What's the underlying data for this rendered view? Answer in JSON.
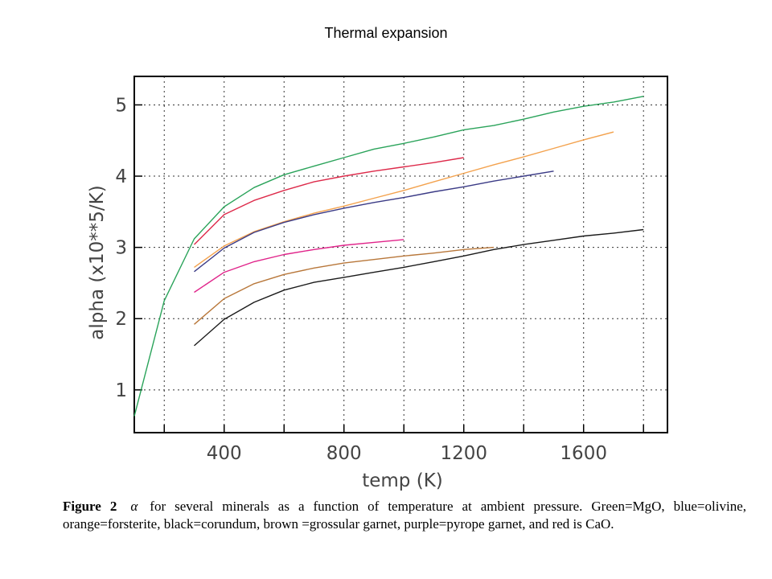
{
  "slide": {
    "title": "Thermal expansion"
  },
  "caption": {
    "figure_label": "Figure 2",
    "symbol": "α",
    "text": "for several minerals as a function of temperature at ambient pressure.  Green=MgO, blue=olivine, orange=forsterite, black=corundum, brown =grossular garnet, purple=pyrope garnet, and red is CaO."
  },
  "chart_data": {
    "type": "line",
    "xlabel": "temp (K)",
    "ylabel": "alpha (x10**5/K)",
    "xlim": [
      100,
      1880
    ],
    "ylim": [
      0.4,
      5.4
    ],
    "xticks": [
      400,
      800,
      1200,
      1600
    ],
    "yticks": [
      1,
      2,
      3,
      4,
      5
    ],
    "x_grid": [
      200,
      400,
      600,
      800,
      1000,
      1200,
      1400,
      1600,
      1800
    ],
    "y_grid": [
      1,
      2,
      3,
      4,
      5
    ],
    "grid": true,
    "grid_style": "dotted",
    "series": [
      {
        "color": "#2aa35a",
        "x": [
          100,
          200,
          300,
          400,
          500,
          600,
          700,
          800,
          900,
          1000,
          1100,
          1200,
          1300,
          1400,
          1500,
          1600,
          1700,
          1800
        ],
        "y": [
          0.63,
          2.25,
          3.12,
          3.57,
          3.84,
          4.02,
          4.14,
          4.26,
          4.38,
          4.46,
          4.55,
          4.65,
          4.71,
          4.8,
          4.9,
          4.98,
          5.04,
          5.12
        ]
      },
      {
        "color": "#dd2a4a",
        "x": [
          300,
          400,
          500,
          600,
          700,
          800,
          900,
          1000,
          1100,
          1200
        ],
        "y": [
          3.04,
          3.46,
          3.66,
          3.8,
          3.92,
          4.0,
          4.07,
          4.13,
          4.19,
          4.26
        ]
      },
      {
        "color": "#f3a24e",
        "x": [
          300,
          400,
          500,
          600,
          700,
          800,
          900,
          1000,
          1100,
          1200,
          1300,
          1400,
          1500,
          1600,
          1700
        ],
        "y": [
          2.72,
          3.02,
          3.22,
          3.36,
          3.48,
          3.58,
          3.69,
          3.8,
          3.92,
          4.04,
          4.16,
          4.27,
          4.39,
          4.51,
          4.62
        ]
      },
      {
        "color": "#3b3b86",
        "x": [
          300,
          400,
          500,
          600,
          700,
          800,
          900,
          1000,
          1100,
          1200,
          1300,
          1400,
          1500
        ],
        "y": [
          2.66,
          2.99,
          3.21,
          3.35,
          3.46,
          3.55,
          3.63,
          3.7,
          3.78,
          3.85,
          3.93,
          4.0,
          4.07
        ]
      },
      {
        "color": "#e0248a",
        "x": [
          300,
          400,
          500,
          600,
          700,
          800,
          900,
          1000
        ],
        "y": [
          2.37,
          2.65,
          2.8,
          2.9,
          2.97,
          3.03,
          3.07,
          3.11
        ]
      },
      {
        "color": "#b8773a",
        "x": [
          300,
          400,
          500,
          600,
          700,
          800,
          900,
          1000,
          1100,
          1200,
          1300
        ],
        "y": [
          1.92,
          2.28,
          2.49,
          2.62,
          2.71,
          2.78,
          2.83,
          2.88,
          2.92,
          2.97,
          3.0
        ]
      },
      {
        "color": "#1a1a1a",
        "x": [
          300,
          400,
          500,
          600,
          700,
          800,
          900,
          1000,
          1100,
          1200,
          1300,
          1400,
          1500,
          1600,
          1700,
          1800
        ],
        "y": [
          1.62,
          1.99,
          2.23,
          2.4,
          2.51,
          2.58,
          2.65,
          2.72,
          2.8,
          2.88,
          2.97,
          3.04,
          3.1,
          3.16,
          3.2,
          3.25
        ]
      }
    ]
  }
}
